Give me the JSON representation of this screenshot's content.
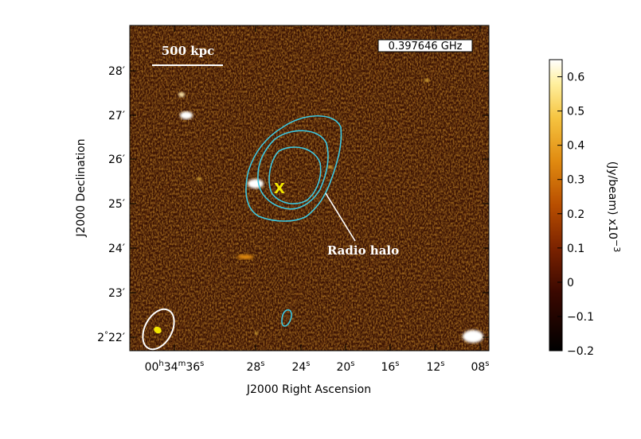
{
  "image": {
    "frequency_label": "0.397646 GHz",
    "scalebar_label": "500 kpc",
    "annotation_halo": "Radio halo",
    "marker": "X"
  },
  "axes": {
    "xlabel": "J2000 Right Ascension",
    "ylabel": "J2000 Declination",
    "x_ticks": [
      {
        "prefix": "00",
        "h": "h",
        "mid": "34",
        "m": "m",
        "val": "36",
        "s": "s"
      },
      {
        "val": "28",
        "s": "s"
      },
      {
        "val": "24",
        "s": "s"
      },
      {
        "val": "20",
        "s": "s"
      },
      {
        "val": "16",
        "s": "s"
      },
      {
        "val": "12",
        "s": "s"
      },
      {
        "val": "08",
        "s": "s"
      }
    ],
    "y_ticks": [
      {
        "deg": "2",
        "degsym": "°",
        "val": "22",
        "unit": "′"
      },
      {
        "val": "23",
        "unit": "′"
      },
      {
        "val": "24",
        "unit": "′"
      },
      {
        "val": "25",
        "unit": "′"
      },
      {
        "val": "26",
        "unit": "′"
      },
      {
        "val": "27",
        "unit": "′"
      },
      {
        "val": "28",
        "unit": "′"
      }
    ]
  },
  "colorbar": {
    "label": "(Jy/beam)  x10",
    "exponent": "−3",
    "tick_labels": [
      "0.6",
      "0.5",
      "0.4",
      "0.3",
      "0.2",
      "0.1",
      "0",
      "−0.1",
      "−0.2"
    ],
    "range": [
      -0.2,
      0.65
    ]
  },
  "colors": {
    "contour": "#3ec8e0",
    "marker": "#f2e600",
    "beam": "#ffffff",
    "bg_low": "#000000",
    "bg_high": "#ffffff"
  }
}
